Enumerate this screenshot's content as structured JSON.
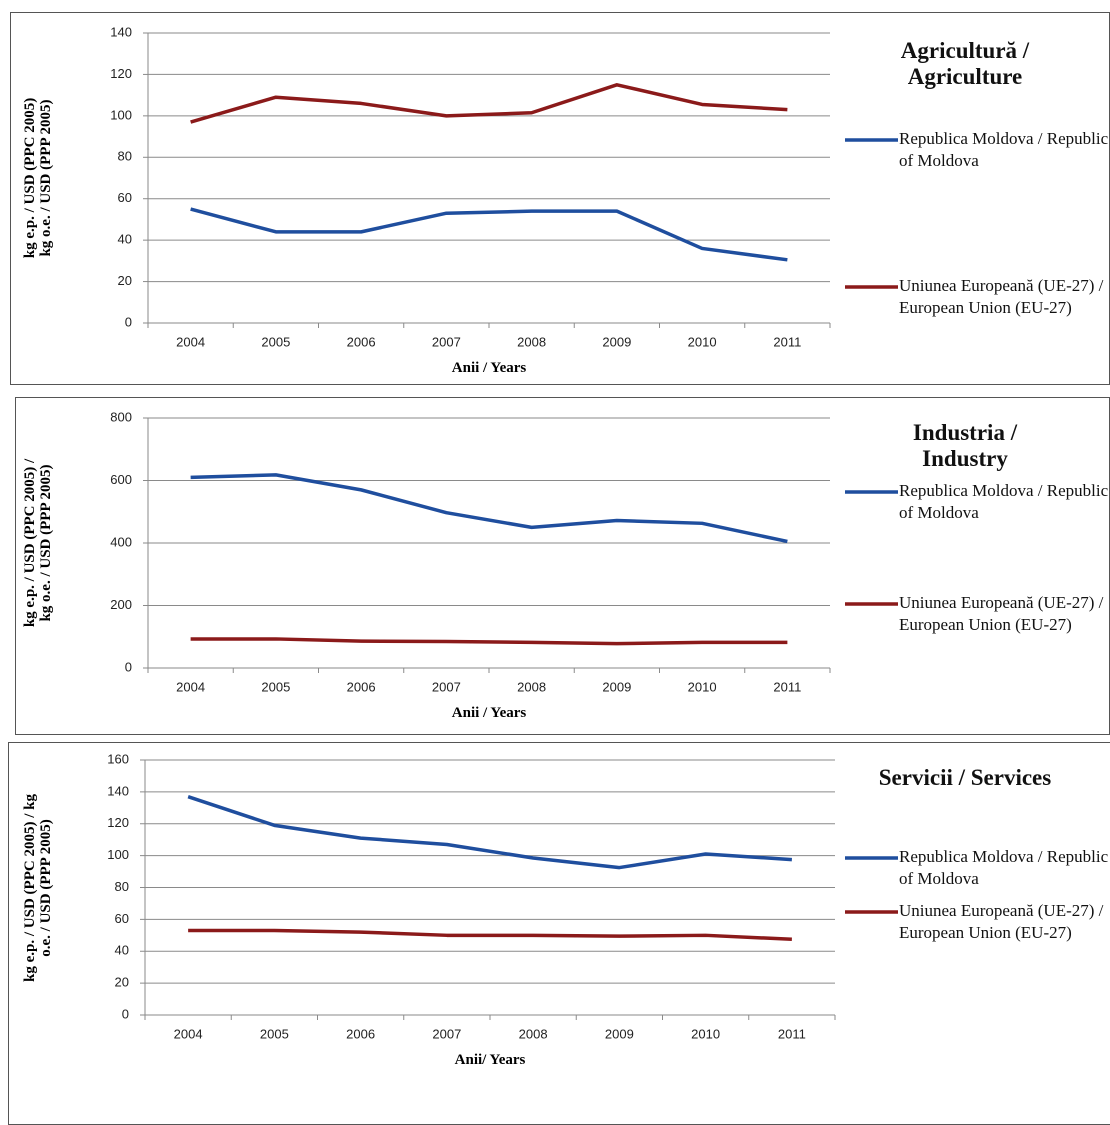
{
  "chart_data": [
    {
      "type": "line",
      "title": "Agricultură / Agriculture",
      "ylabel": [
        "kg e.p. / USD (PPC 2005)",
        "kg o.e. / USD (PPP 2005)"
      ],
      "xlabel": "Anii / Years",
      "categories": [
        "2004",
        "2005",
        "2006",
        "2007",
        "2008",
        "2009",
        "2010",
        "2011"
      ],
      "series": [
        {
          "name": "Republica Moldova / Republic of Moldova",
          "color": "#1f4e9e",
          "values": [
            55,
            44,
            44,
            53,
            54,
            54,
            36,
            30.5
          ]
        },
        {
          "name": "Uniunea Europeană (UE-27) / European Union (EU-27)",
          "color": "#8b1a1a",
          "values": [
            97,
            109,
            106,
            100,
            101.5,
            115,
            105.5,
            103
          ]
        }
      ],
      "ylim": [
        0,
        140
      ],
      "yticks": [
        0,
        20,
        40,
        60,
        80,
        100,
        120,
        140
      ],
      "grid": true
    },
    {
      "type": "line",
      "title": "Industria / Industry",
      "ylabel": [
        "kg e.p. / USD (PPC 2005) /",
        "kg o.e. / USD (PPP 2005)"
      ],
      "xlabel": "Anii / Years",
      "categories": [
        "2004",
        "2005",
        "2006",
        "2007",
        "2008",
        "2009",
        "2010",
        "2011"
      ],
      "series": [
        {
          "name": "Republica Moldova / Republic of Moldova",
          "color": "#1f4e9e",
          "values": [
            610,
            618,
            570,
            497,
            450,
            472,
            463,
            405
          ]
        },
        {
          "name": "Uniunea Europeană (UE-27) / European Union (EU-27)",
          "color": "#8b1a1a",
          "values": [
            93,
            93,
            86,
            85,
            82,
            78,
            82,
            82
          ]
        }
      ],
      "ylim": [
        0,
        800
      ],
      "yticks": [
        0,
        200,
        400,
        600,
        800
      ],
      "grid": true
    },
    {
      "type": "line",
      "title": "Servicii / Services",
      "ylabel": [
        "kg e.p. / USD (PPC 2005) / kg",
        "o.e. / USD (PPP 2005)"
      ],
      "xlabel": "Anii/ Years",
      "categories": [
        "2004",
        "2005",
        "2006",
        "2007",
        "2008",
        "2009",
        "2010",
        "2011"
      ],
      "series": [
        {
          "name": "Republica Moldova / Republic of Moldova",
          "color": "#1f4e9e",
          "values": [
            137,
            119,
            111,
            107,
            98.5,
            92.5,
            101,
            97.5
          ]
        },
        {
          "name": "Uniunea Europeană (UE-27) / European Union (EU-27)",
          "color": "#8b1a1a",
          "values": [
            53,
            53,
            52,
            50,
            50,
            49.5,
            50,
            47.5
          ]
        }
      ],
      "ylim": [
        0,
        160
      ],
      "yticks": [
        0,
        20,
        40,
        60,
        80,
        100,
        120,
        140,
        160
      ],
      "grid": true
    }
  ]
}
